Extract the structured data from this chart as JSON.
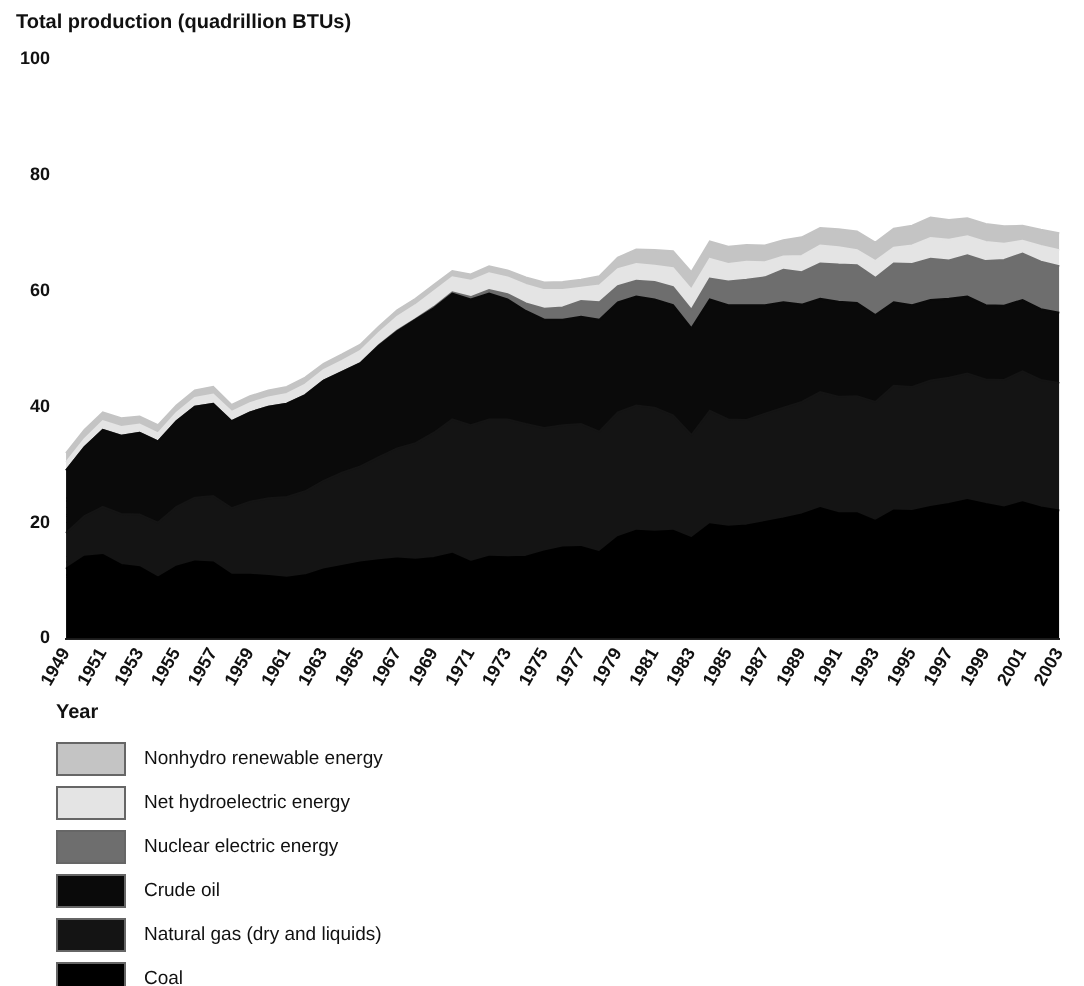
{
  "chart_data": {
    "type": "area",
    "stacked": true,
    "ylabel": "Total production (quadrillion BTUs)",
    "xlabel": "Year",
    "categories": [
      "1949",
      null,
      "1951",
      null,
      "1953",
      null,
      "1955",
      null,
      "1957",
      null,
      "1959",
      null,
      "1961",
      null,
      "1963",
      null,
      "1965",
      null,
      "1967",
      null,
      "1969",
      null,
      "1971",
      null,
      "1973",
      null,
      "1975",
      null,
      "1977",
      null,
      "1979",
      null,
      "1981",
      null,
      "1983",
      null,
      "1985",
      null,
      "1987",
      null,
      "1989",
      null,
      "1991",
      null,
      "1993",
      null,
      "1995",
      null,
      "1997",
      null,
      "1999",
      null,
      "2001",
      null,
      "2003"
    ],
    "ylim": [
      0,
      100
    ],
    "yticks": [
      0,
      20,
      40,
      60,
      80,
      100
    ],
    "grid": false,
    "legend": "bottom",
    "marker": "none",
    "series": [
      {
        "name": "Coal",
        "color": "#000000",
        "values": [
          12,
          14.1,
          14.4,
          12.7,
          12.3,
          10.5,
          12.4,
          13.3,
          13.1,
          11,
          11,
          10.8,
          10.5,
          10.9,
          11.9,
          12.5,
          13.1,
          13.5,
          13.8,
          13.6,
          13.9,
          14.6,
          13.2,
          14.1,
          14,
          14.1,
          15,
          15.7,
          15.8,
          14.9,
          17.5,
          18.6,
          18.4,
          18.6,
          17.3,
          19.7,
          19.3,
          19.5,
          20.1,
          20.7,
          21.4,
          22.5,
          21.6,
          21.6,
          20.3,
          22.1,
          22,
          22.7,
          23.2,
          23.9,
          23.2,
          22.6,
          23.5,
          22.6,
          22.1
        ]
      },
      {
        "name": "Natural gas (dry and liquids)",
        "color": "#141414",
        "values": [
          6.2,
          7,
          8.3,
          8.8,
          9.1,
          9.5,
          10.3,
          11,
          11.5,
          11.5,
          12.6,
          13.4,
          13.9,
          14.5,
          15.3,
          16.1,
          16.6,
          17.8,
          19,
          20.1,
          21.6,
          23.2,
          23.6,
          23.7,
          23.8,
          22.9,
          21.3,
          21.1,
          21.2,
          20.8,
          21.5,
          21.6,
          21.4,
          19.9,
          17.8,
          19.6,
          18.5,
          18.2,
          18.7,
          19.1,
          19.4,
          20,
          20.1,
          20.2,
          20.5,
          21.5,
          21.4,
          21.8,
          21.8,
          21.8,
          21.5,
          22,
          22.6,
          22,
          22
        ]
      },
      {
        "name": "Crude oil",
        "color": "#0a0a0a",
        "values": [
          10.8,
          11.9,
          13.3,
          13.5,
          14.1,
          14,
          14.8,
          15.7,
          15.9,
          15,
          15.4,
          15.8,
          16.1,
          16.6,
          17.3,
          17.4,
          17.8,
          19.2,
          20.2,
          21.3,
          21.5,
          21.7,
          21.7,
          21.7,
          20.7,
          19.5,
          18.7,
          18.2,
          18.5,
          19.3,
          19,
          18.8,
          18.7,
          19,
          18.4,
          19.2,
          19.7,
          19.8,
          18.7,
          18.2,
          16.8,
          16.1,
          16.4,
          16.1,
          15,
          14.4,
          14.1,
          13.9,
          13.6,
          13.3,
          12.8,
          12.8,
          12.3,
          12.2,
          12.1
        ]
      },
      {
        "name": "Nuclear electric energy",
        "color": "#6e6e6e",
        "values": [
          0,
          0,
          0,
          0,
          0,
          0,
          0,
          0,
          0,
          0,
          0,
          0,
          0,
          0,
          0,
          0,
          0,
          0.1,
          0.1,
          0.1,
          0.2,
          0.2,
          0.4,
          0.6,
          0.9,
          1.3,
          1.9,
          2.1,
          2.7,
          3,
          2.8,
          2.7,
          3,
          3.1,
          3.2,
          3.6,
          4.1,
          4.4,
          4.8,
          5.6,
          5.6,
          6.1,
          6.4,
          6.5,
          6.4,
          6.7,
          7.1,
          7.1,
          6.6,
          7.1,
          7.6,
          7.9,
          8,
          8.2,
          8
        ]
      },
      {
        "name": "Net hydroelectric energy",
        "color": "#e4e4e4",
        "values": [
          1.4,
          1.4,
          1.5,
          1.5,
          1.4,
          1.4,
          1.4,
          1.5,
          1.6,
          1.6,
          1.6,
          1.6,
          1.7,
          1.8,
          1.8,
          1.9,
          2.1,
          2.1,
          2.4,
          2.4,
          2.7,
          2.6,
          2.8,
          2.9,
          2.9,
          3.2,
          3.2,
          3,
          2.3,
          2.9,
          2.9,
          2.9,
          2.8,
          3.3,
          3.5,
          3.4,
          3,
          3.1,
          2.6,
          2.3,
          2.8,
          3.1,
          3,
          2.6,
          2.9,
          2.7,
          3.2,
          3.6,
          3.6,
          3.3,
          3.3,
          2.8,
          2.2,
          2.7,
          2.8
        ]
      },
      {
        "name": "Nonhydro renewable energy",
        "color": "#c4c4c4",
        "values": [
          1.6,
          1.6,
          1.5,
          1.5,
          1.4,
          1.4,
          1.3,
          1.3,
          1.3,
          1.2,
          1.2,
          1.2,
          1.2,
          1.2,
          1.1,
          1.1,
          1.1,
          1.1,
          1.1,
          1.1,
          1.1,
          1.1,
          1.1,
          1.2,
          1.2,
          1.3,
          1.3,
          1.4,
          1.4,
          1.6,
          2,
          2.5,
          2.7,
          2.9,
          3,
          3,
          3,
          2.9,
          2.9,
          2.8,
          3.2,
          3,
          3.1,
          3.2,
          3.2,
          3.3,
          3.4,
          3.5,
          3.4,
          3.1,
          3.1,
          3,
          2.6,
          2.8,
          2.9
        ]
      }
    ]
  }
}
